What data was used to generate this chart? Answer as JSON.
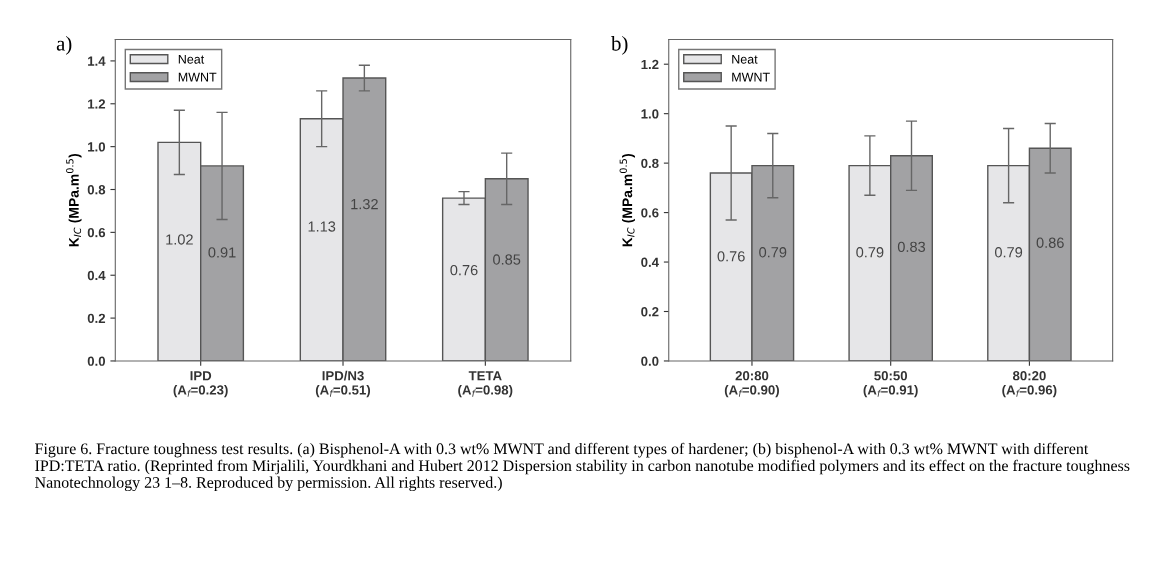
{
  "chart_data": [
    {
      "type": "bar",
      "title": "a)",
      "ylabel": "K$_{IC}$ (MPa.m$^{0.5}$)",
      "categories": [
        "IPD\n(A$_{f}$=0.23)",
        "IPD/N3\n(A$_{f}$=0.51)",
        "TETA\n(A$_{f}$=0.98)"
      ],
      "series": [
        {
          "name": "Neat",
          "color": "#e6e6e8",
          "values": [
            1.02,
            1.13,
            0.76
          ],
          "errors": [
            0.15,
            0.13,
            0.03
          ]
        },
        {
          "name": "MWNT",
          "color": "#a2a2a4",
          "values": [
            0.91,
            1.32,
            0.85
          ],
          "errors": [
            0.25,
            0.06,
            0.12
          ]
        }
      ],
      "ylim": [
        0,
        1.5
      ],
      "yticks": [
        {
          "value": 0,
          "label": "0.0"
        },
        {
          "value": 0.2,
          "label": "0.2"
        },
        {
          "value": 0.4,
          "label": "0.4"
        },
        {
          "value": 0.6,
          "label": "0.6"
        },
        {
          "value": 0.8,
          "label": "0.8"
        },
        {
          "value": 1.0,
          "label": "1.0"
        },
        {
          "value": 1.2,
          "label": "1.2"
        },
        {
          "value": 1.4,
          "label": "1.4"
        }
      ],
      "data_labels": true,
      "legend": "top left",
      "grid": false,
      "annotations": [
        "Figure 6. Fracture toughness test results. (a) Bisphenol-A with 0.3 wt% MWNT and different types of hardener; (b) bisphenol-A with 0.3 wt% MWNT with different IPD:TETA ratio. (Reprinted from Mirjalili, Yourdkhani and Hubert 2012 Dispersion stability in carbon nanotube modified polymers and its effect on the fracture toughness Nanotechnology 23 1–8. Reproduced by permission. All rights reserved.)"
      ]
    },
    {
      "type": "bar",
      "title": "b)",
      "ylabel": "K$_{IC}$ (MPa.m$^{0.5}$)",
      "categories": [
        "20:80\n(A$_{f}$=0.90)",
        "50:50\n(A$_{f}$=0.91)",
        "80:20\n(A$_{f}$=0.96)"
      ],
      "series": [
        {
          "name": "Neat",
          "color": "#e6e6e8",
          "values": [
            0.76,
            0.79,
            0.79
          ],
          "errors": [
            0.19,
            0.12,
            0.15
          ]
        },
        {
          "name": "MWNT",
          "color": "#a2a2a4",
          "values": [
            0.79,
            0.83,
            0.86
          ],
          "errors": [
            0.13,
            0.14,
            0.1
          ]
        }
      ],
      "ylim": [
        0,
        1.3
      ],
      "yticks": [
        {
          "value": 0,
          "label": "0.0"
        },
        {
          "value": 0.2,
          "label": "0.2"
        },
        {
          "value": 0.4,
          "label": "0.4"
        },
        {
          "value": 0.6,
          "label": "0.6"
        },
        {
          "value": 0.8,
          "label": "0.8"
        },
        {
          "value": 1.0,
          "label": "1.0"
        },
        {
          "value": 1.2,
          "label": "1.2"
        }
      ],
      "data_labels": true,
      "legend": "top left",
      "grid": false
    }
  ]
}
